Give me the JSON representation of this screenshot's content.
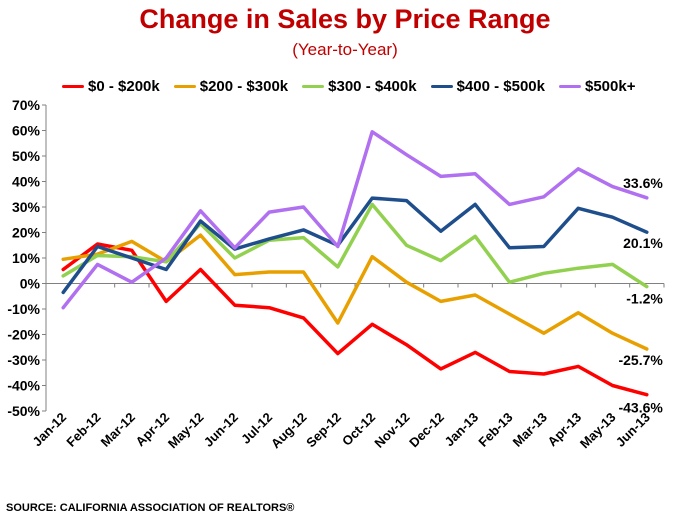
{
  "chart_data": {
    "type": "line",
    "title": "Change in Sales by Price Range",
    "subtitle": "(Year-to-Year)",
    "source": "SOURCE: CALIFORNIA ASSOCIATION OF REALTORS®",
    "categories": [
      "Jan-12",
      "Feb-12",
      "Mar-12",
      "Apr-12",
      "May-12",
      "Jun-12",
      "Jul-12",
      "Aug-12",
      "Sep-12",
      "Oct-12",
      "Nov-12",
      "Dec-12",
      "Jan-13",
      "Feb-13",
      "Mar-13",
      "Apr-13",
      "May-13",
      "Jun-13"
    ],
    "ylim": [
      -50,
      70
    ],
    "yticks": [
      -50,
      -40,
      -30,
      -20,
      -10,
      0,
      10,
      20,
      30,
      40,
      50,
      60,
      70
    ],
    "ytick_labels": [
      "-50%",
      "-40%",
      "-30%",
      "-20%",
      "-10%",
      "0%",
      "10%",
      "20%",
      "30%",
      "40%",
      "50%",
      "60%",
      "70%"
    ],
    "grid": false,
    "legend_position": "top",
    "series": [
      {
        "name": "$0 - $200k",
        "color": "#ff0000",
        "values": [
          5.5,
          15.5,
          13,
          -7,
          5.5,
          -8.5,
          -9.5,
          -13.5,
          -27.5,
          -16,
          -24,
          -33.5,
          -27,
          -34.5,
          -35.5,
          -32.5,
          -40,
          -43.6
        ],
        "end_label": "-43.6%"
      },
      {
        "name": "$200 - $300k",
        "color": "#e8a000",
        "values": [
          9.5,
          11.5,
          16.5,
          8.5,
          19,
          3.5,
          4.5,
          4.5,
          -15.5,
          10.5,
          0.5,
          -7,
          -4.5,
          -12,
          -19.5,
          -11.5,
          -19.5,
          -25.7
        ],
        "end_label": "-25.7%"
      },
      {
        "name": "$300 - $400k",
        "color": "#92d050",
        "values": [
          3,
          11,
          10.5,
          8.5,
          23.5,
          10,
          17,
          18,
          6.5,
          31,
          15,
          9,
          18.5,
          0.5,
          4,
          6,
          7.5,
          -1.2
        ],
        "end_label": "-1.2%"
      },
      {
        "name": "$400 - $500k",
        "color": "#1f4e8c",
        "values": [
          -3.5,
          14.5,
          10,
          5.5,
          24.5,
          13.5,
          17.5,
          21,
          15,
          33.5,
          32.5,
          20.5,
          31,
          14,
          14.5,
          29.5,
          26,
          20.1
        ],
        "end_label": "20.1%"
      },
      {
        "name": "$500k+",
        "color": "#b070f0",
        "values": [
          -9.5,
          7.5,
          0.5,
          10,
          28.5,
          14,
          28,
          30,
          14.5,
          59.5,
          50.5,
          42,
          43,
          31,
          34,
          45,
          38,
          33.6
        ],
        "end_label": "33.6%"
      }
    ]
  }
}
